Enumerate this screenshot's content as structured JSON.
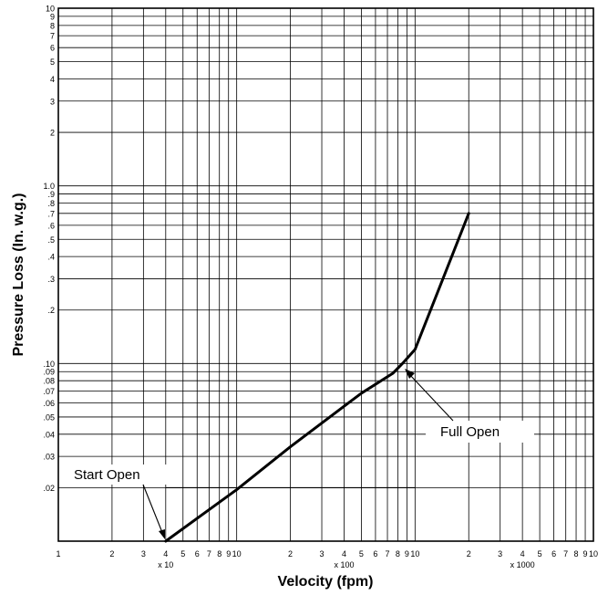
{
  "chart_data": {
    "type": "line",
    "xlabel": "Velocity (fpm)",
    "ylabel": "Pressure Loss (In. w.g.)",
    "xscale": "log",
    "yscale": "log",
    "xlim": [
      10,
      10000
    ],
    "ylim": [
      0.01,
      10
    ],
    "grid": true,
    "x_tick_labels": [
      "1",
      "2",
      "3",
      "4",
      "5",
      "6",
      "7",
      "8",
      "9",
      "10",
      "2",
      "3",
      "4",
      "5",
      "6",
      "7",
      "8",
      "9",
      "10",
      "2",
      "3",
      "4",
      "5",
      "6",
      "7",
      "8",
      "9",
      "10"
    ],
    "x_multipliers": [
      "x 10",
      "x 100",
      "x 1000"
    ],
    "y_tick_labels": [
      ".02",
      ".03",
      ".04",
      ".05",
      ".06",
      ".07",
      ".08",
      ".09",
      ".10",
      ".2",
      ".3",
      ".4",
      ".5",
      ".6",
      ".7",
      ".8",
      ".9",
      "1.0",
      "2",
      "3",
      "4",
      "5",
      "6",
      "7",
      "8",
      "9",
      "10"
    ],
    "series": [
      {
        "x": [
          40,
          100,
          200,
          500,
          750,
          850,
          1000,
          2000
        ],
        "y": [
          0.01,
          0.0195,
          0.034,
          0.068,
          0.088,
          0.1,
          0.12,
          0.7
        ]
      }
    ],
    "annotations": [
      {
        "text": "Start Open",
        "x": 40,
        "y": 0.01
      },
      {
        "text": "Full Open",
        "x": 850,
        "y": 0.095
      }
    ],
    "reference_line": {
      "y": 0.02,
      "x_range": [
        40,
        1000
      ]
    },
    "colors": {
      "line": "#000000",
      "grid": "#000000",
      "background": "#ffffff"
    }
  }
}
